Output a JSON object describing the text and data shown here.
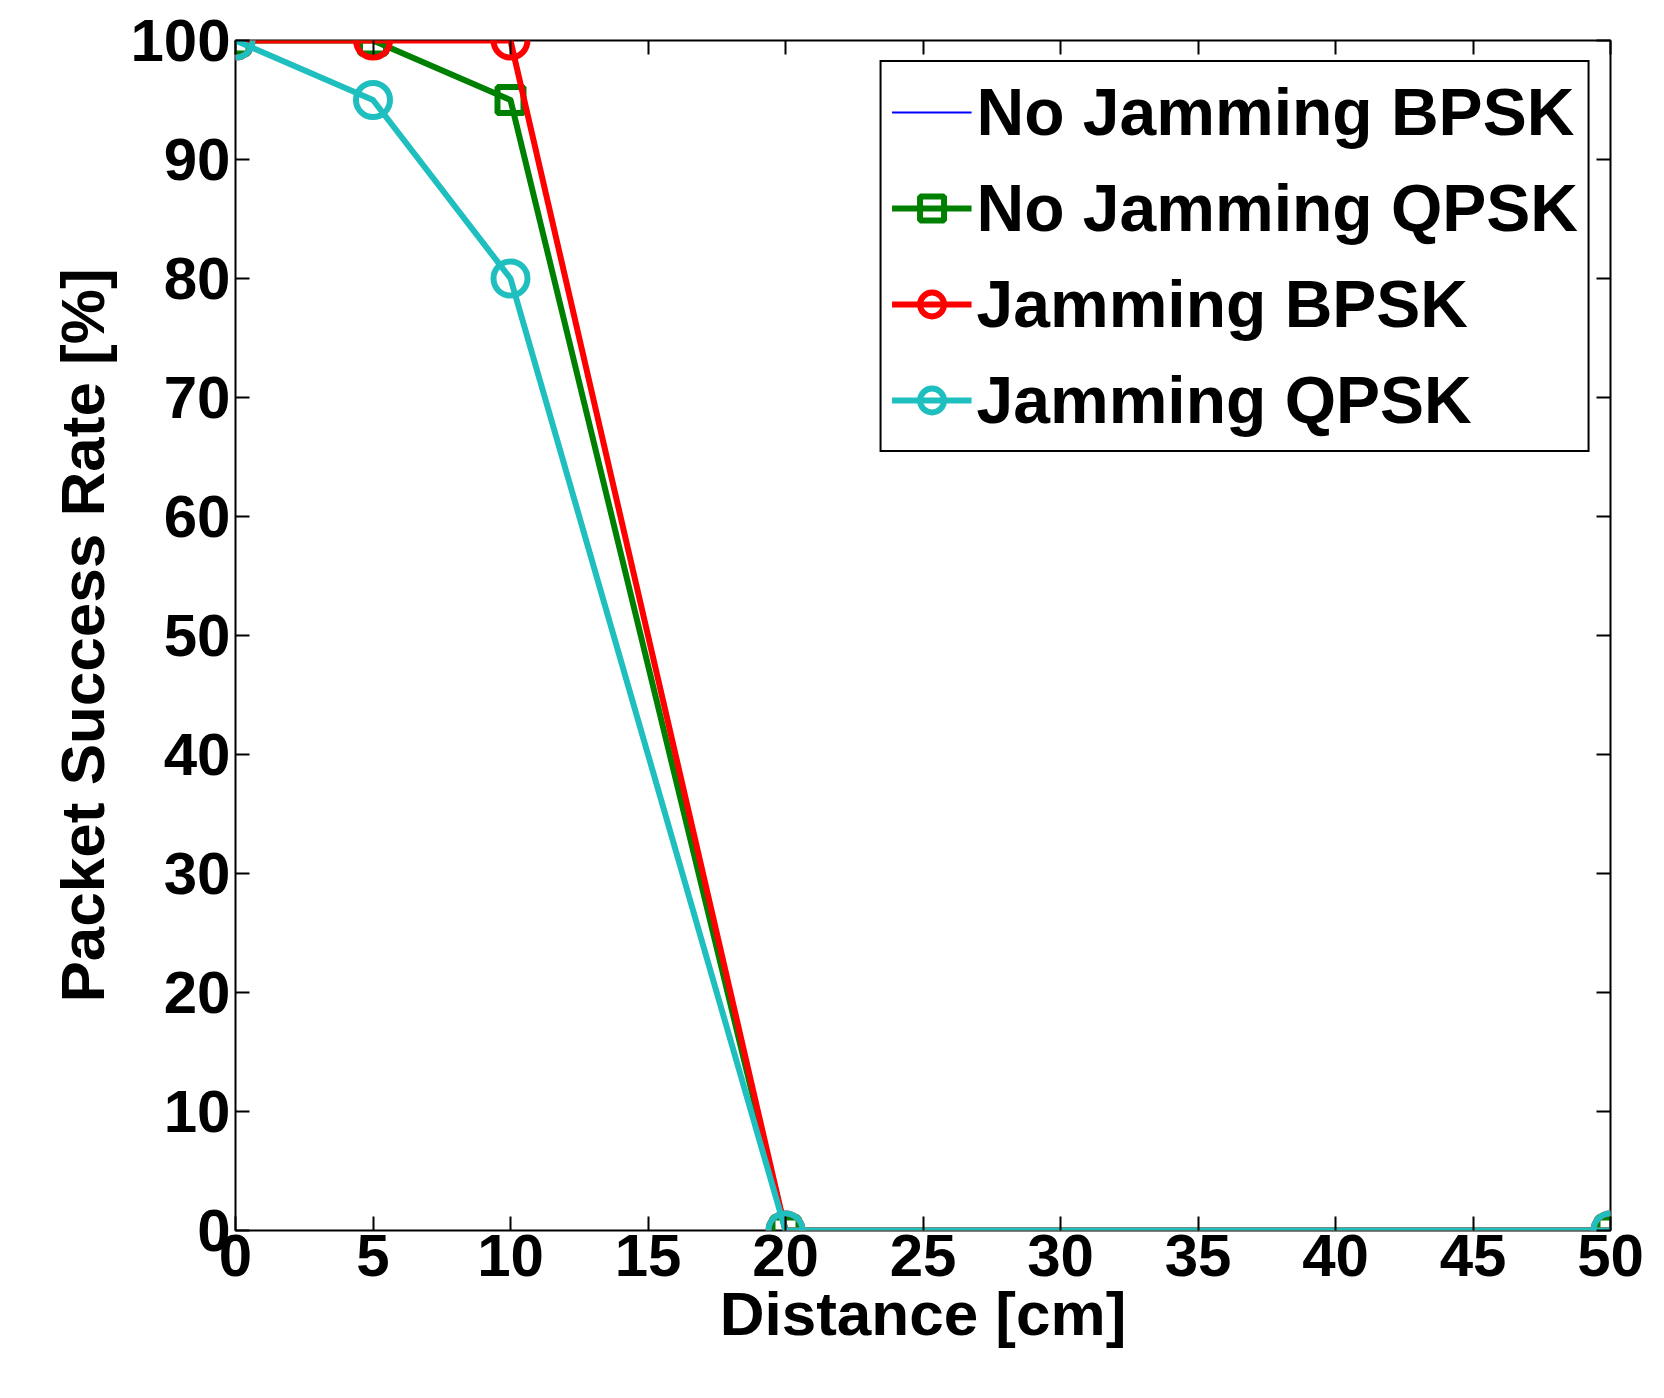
{
  "chart_data": {
    "type": "line",
    "xlabel": "Distance [cm]",
    "ylabel": "Packet Success Rate [%]",
    "x": [
      0,
      5,
      10,
      20,
      50
    ],
    "series": [
      {
        "name": "No Jamming BPSK",
        "color": "#0000ff",
        "values": [
          null,
          null,
          null,
          null,
          null
        ],
        "marker": "none"
      },
      {
        "name": "No Jamming QPSK",
        "color": "#008000",
        "values": [
          100,
          100,
          95,
          0,
          0
        ],
        "marker": "square"
      },
      {
        "name": "Jamming BPSK",
        "color": "#ff0000",
        "values": [
          100,
          100,
          100,
          0,
          0
        ],
        "marker": "circle"
      },
      {
        "name": "Jamming QPSK",
        "color": "#1fbfbf",
        "values": [
          100,
          95,
          80,
          0,
          0
        ],
        "marker": "circle"
      }
    ],
    "xlim": [
      0,
      50
    ],
    "ylim": [
      0,
      100
    ],
    "xticks": [
      0,
      5,
      10,
      15,
      20,
      25,
      30,
      35,
      40,
      45,
      50
    ],
    "yticks": [
      0,
      10,
      20,
      30,
      40,
      50,
      60,
      70,
      80,
      90,
      100
    ],
    "grid": false,
    "legend": "top right",
    "line_style": "solid"
  }
}
